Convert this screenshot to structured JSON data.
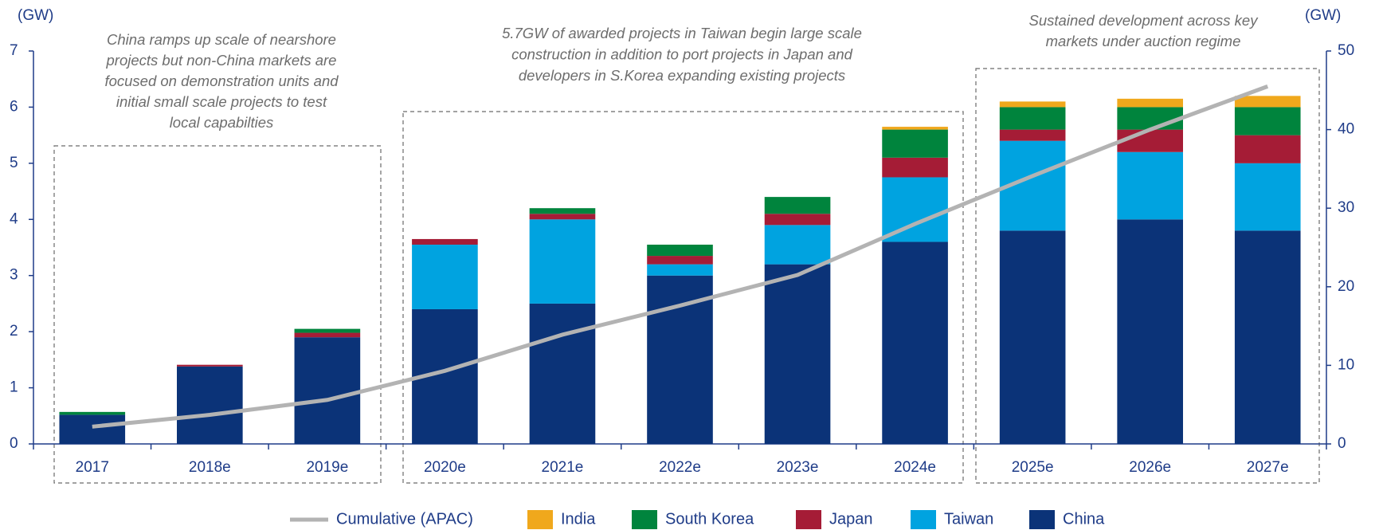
{
  "chart_data": {
    "type": "bar",
    "y_unit": "(GW)",
    "y2_unit": "(GW)",
    "annotations": [
      [
        "China ramps up scale of nearshore",
        "projects but non-China markets are",
        "focused on demonstration units and",
        "initial small scale projects to test",
        "local capabilties"
      ],
      [
        "5.7GW of awarded projects in Taiwan begin large scale",
        "construction in addition to port projects in Japan and",
        "developers in S.Korea expanding existing projects"
      ],
      [
        "Sustained development across key",
        "markets under auction regime"
      ]
    ],
    "categories": [
      "2017",
      "2018e",
      "2019e",
      "2020e",
      "2021e",
      "2022e",
      "2023e",
      "2024e",
      "2025e",
      "2026e",
      "2027e"
    ],
    "series": [
      {
        "name": "China",
        "color": "#0b3378",
        "values": [
          0.52,
          1.38,
          1.9,
          2.4,
          2.5,
          3.0,
          3.2,
          3.6,
          3.8,
          4.0,
          3.8
        ]
      },
      {
        "name": "Taiwan",
        "color": "#00a3e0",
        "values": [
          0,
          0,
          0,
          1.15,
          1.5,
          0.2,
          0.7,
          1.15,
          1.6,
          1.2,
          1.2
        ]
      },
      {
        "name": "Japan",
        "color": "#a51c36",
        "values": [
          0,
          0.03,
          0.08,
          0.1,
          0.1,
          0.15,
          0.2,
          0.35,
          0.2,
          0.4,
          0.5
        ]
      },
      {
        "name": "South Korea",
        "color": "#00843d",
        "values": [
          0.05,
          0,
          0.07,
          0,
          0.1,
          0.2,
          0.3,
          0.5,
          0.4,
          0.4,
          0.5
        ]
      },
      {
        "name": "India",
        "color": "#f0a81c",
        "values": [
          0,
          0,
          0,
          0,
          0,
          0,
          0,
          0.05,
          0.1,
          0.15,
          0.2
        ]
      },
      {
        "name": "Cumulative (APAC)",
        "color": "#b3b3b3",
        "type": "line",
        "axis": "y2",
        "values": [
          2.2,
          3.7,
          5.6,
          9.3,
          13.9,
          17.6,
          21.5,
          28.0,
          34.1,
          40.0,
          45.5
        ]
      }
    ],
    "ylim": [
      0,
      7
    ],
    "yticks": [
      0,
      1,
      2,
      3,
      4,
      5,
      6,
      7
    ],
    "y2lim": [
      0,
      50
    ],
    "y2ticks": [
      0,
      10,
      20,
      30,
      40,
      50
    ]
  }
}
